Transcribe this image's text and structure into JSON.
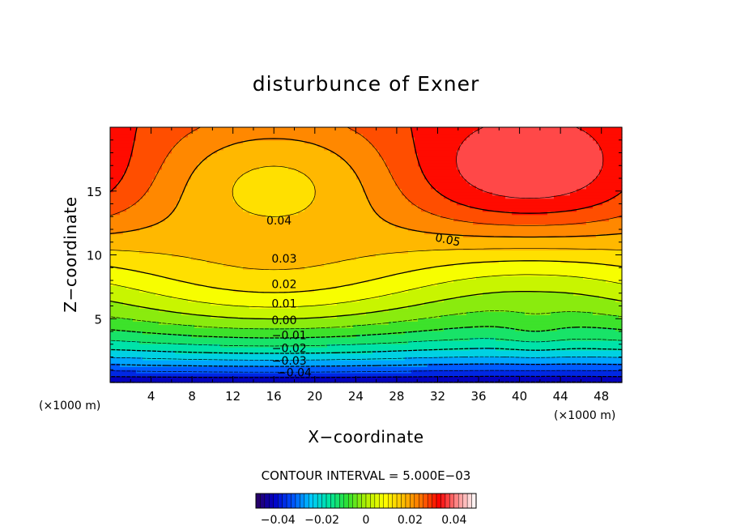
{
  "chart_data": {
    "type": "contour",
    "title": "disturbunce of Exner",
    "xlabel": "X−coordinate",
    "ylabel": "Z−coordinate",
    "x_unit": "(×1000 m)",
    "y_unit": "(×1000 m)",
    "xlim": [
      0,
      50
    ],
    "ylim": [
      0,
      20
    ],
    "x_ticks": [
      4,
      8,
      12,
      16,
      20,
      24,
      28,
      32,
      36,
      40,
      44,
      48
    ],
    "y_ticks": [
      5,
      10,
      15
    ],
    "contour_interval_text": "CONTOUR INTERVAL = 5.000E−03",
    "contour_interval": 0.005,
    "contour_labels": [
      {
        "text": "0.05",
        "x": 33,
        "z": 11.2,
        "rotate": 12
      },
      {
        "text": "0.04",
        "x": 16.5,
        "z": 12.7
      },
      {
        "text": "0.03",
        "x": 17,
        "z": 9.7
      },
      {
        "text": "0.02",
        "x": 17,
        "z": 7.7
      },
      {
        "text": "0.01",
        "x": 17,
        "z": 6.2
      },
      {
        "text": "0.00",
        "x": 17,
        "z": 4.9
      },
      {
        "text": "−0.01",
        "x": 17.5,
        "z": 3.7
      },
      {
        "text": "−0.02",
        "x": 17.5,
        "z": 2.7
      },
      {
        "text": "−0.03",
        "x": 17.5,
        "z": 1.7
      },
      {
        "text": "−0.04",
        "x": 18,
        "z": 0.8
      }
    ],
    "value_range": [
      -0.05,
      0.05
    ],
    "colorbar_ticks": [
      {
        "value": -0.04,
        "label": "−0.04"
      },
      {
        "value": -0.02,
        "label": "−0.02"
      },
      {
        "value": 0,
        "label": "0"
      },
      {
        "value": 0.02,
        "label": "0.02"
      },
      {
        "value": 0.04,
        "label": "0.04"
      }
    ],
    "colormap": [
      "#2b0060",
      "#0000c8",
      "#0050ff",
      "#00c8ff",
      "#00e6a0",
      "#30e030",
      "#b0f000",
      "#ffff00",
      "#ffc000",
      "#ff7000",
      "#ff0000",
      "#ff9090",
      "#ffffff"
    ]
  }
}
